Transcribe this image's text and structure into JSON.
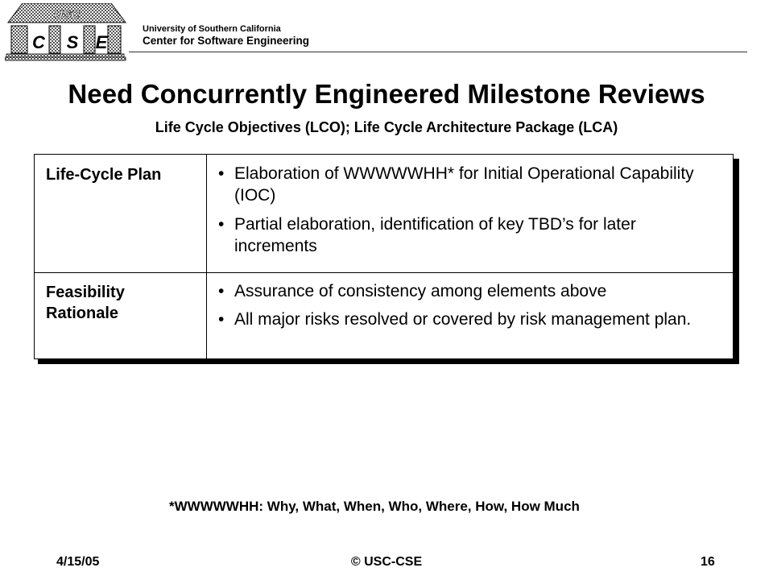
{
  "header": {
    "logo_letters": [
      "C",
      "S",
      "E"
    ],
    "logo_roof_text": "USC",
    "institution": "University of Southern California",
    "center": "Center for Software Engineering"
  },
  "slide": {
    "title": "Need Concurrently Engineered Milestone Reviews",
    "subtitle": "Life Cycle Objectives (LCO); Life Cycle Architecture Package (LCA)"
  },
  "table": {
    "rows": [
      {
        "label": "Life-Cycle Plan",
        "bullets": [
          "Elaboration of WWWWWHH* for Initial Operational Capability (IOC)",
          "Partial elaboration, identification of key TBD’s for later increments"
        ]
      },
      {
        "label": "Feasibility Rationale",
        "bullets": [
          "Assurance of consistency among elements above",
          "All major risks resolved or covered by risk management plan."
        ]
      }
    ]
  },
  "footnote": "*WWWWWHH: Why, What, When, Who, Where, How, How Much",
  "footer": {
    "date": "4/15/05",
    "copyright": "© USC-CSE",
    "page": "16"
  },
  "bullet_char": "•",
  "colors": {
    "text": "#000000",
    "background": "#ffffff",
    "logo_pillar": "#d0d0d0"
  }
}
